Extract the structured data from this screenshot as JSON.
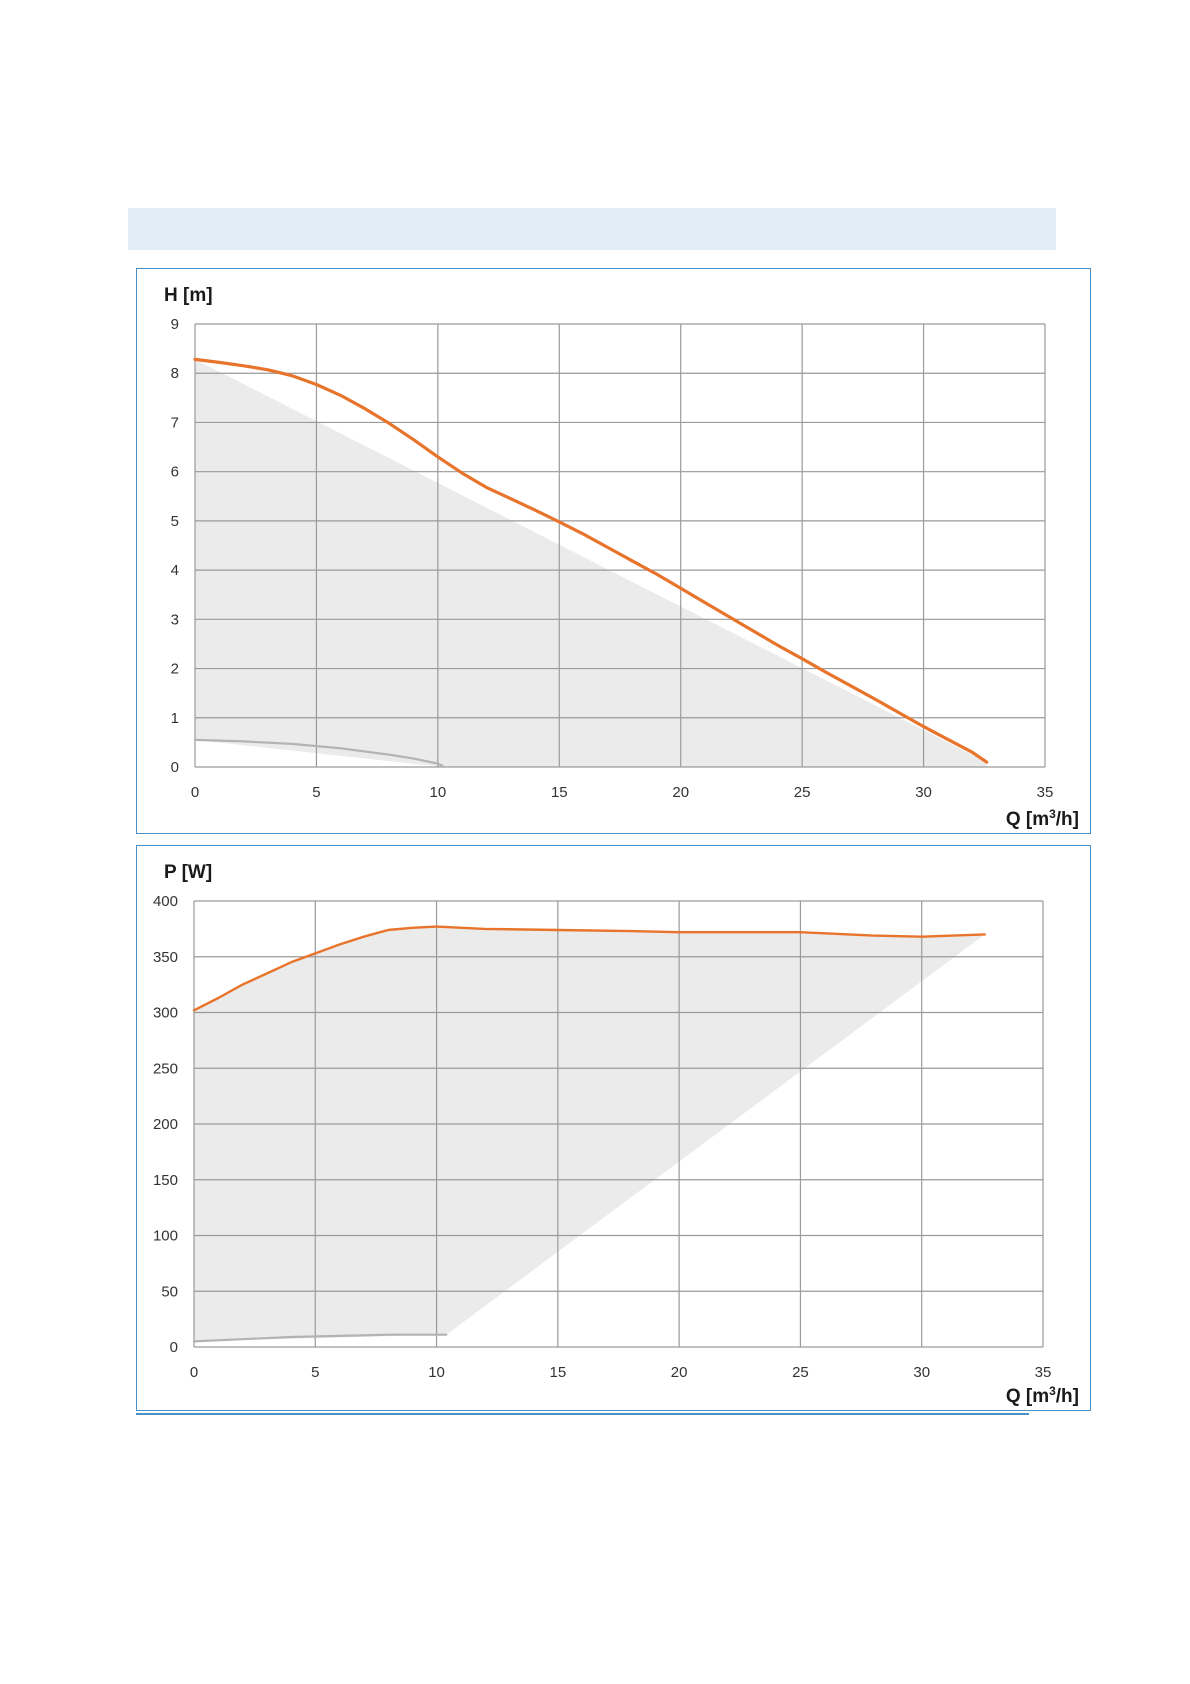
{
  "header_bar": {
    "text": ""
  },
  "colors": {
    "curve": "#e8742c",
    "min_curve": "#b3b3b3",
    "area": "#ebebeb",
    "grid": "#9a9a9a",
    "frame": "#4a90c8",
    "header_bar": "#e3edf7"
  },
  "chart_data": [
    {
      "id": "head",
      "type": "line",
      "ylabel": "H [m]",
      "xlabel_prefix": "Q [m",
      "xlabel_sup": "3",
      "xlabel_suffix": "/h]",
      "xlim": [
        0,
        35
      ],
      "ylim": [
        0,
        9
      ],
      "xticks": [
        0,
        5,
        10,
        15,
        20,
        25,
        30,
        35
      ],
      "yticks": [
        0,
        1,
        2,
        3,
        4,
        5,
        6,
        7,
        8,
        9
      ],
      "grid": true,
      "series": [
        {
          "role": "max",
          "points": [
            [
              0,
              8.28
            ],
            [
              1,
              8.22
            ],
            [
              2,
              8.15
            ],
            [
              3,
              8.07
            ],
            [
              4,
              7.95
            ],
            [
              5,
              7.77
            ],
            [
              6,
              7.55
            ],
            [
              7,
              7.28
            ],
            [
              8,
              6.98
            ],
            [
              9,
              6.65
            ],
            [
              10,
              6.3
            ],
            [
              11,
              5.97
            ],
            [
              12,
              5.68
            ],
            [
              13,
              5.45
            ],
            [
              14,
              5.22
            ],
            [
              15,
              4.98
            ],
            [
              16,
              4.73
            ],
            [
              17,
              4.46
            ],
            [
              18,
              4.19
            ],
            [
              19,
              3.92
            ],
            [
              20,
              3.63
            ],
            [
              21,
              3.34
            ],
            [
              22,
              3.05
            ],
            [
              23,
              2.76
            ],
            [
              24,
              2.47
            ],
            [
              25,
              2.2
            ],
            [
              26,
              1.92
            ],
            [
              27,
              1.65
            ],
            [
              28,
              1.38
            ],
            [
              29,
              1.1
            ],
            [
              30,
              0.82
            ],
            [
              31,
              0.56
            ],
            [
              32,
              0.3
            ],
            [
              32.6,
              0.1
            ]
          ]
        },
        {
          "role": "min",
          "points": [
            [
              0,
              0.55
            ],
            [
              2,
              0.52
            ],
            [
              4,
              0.47
            ],
            [
              6,
              0.38
            ],
            [
              8,
              0.25
            ],
            [
              9,
              0.17
            ],
            [
              10,
              0.07
            ],
            [
              10.2,
              0.02
            ]
          ]
        }
      ],
      "area_polygon": [
        [
          0,
          8.28
        ],
        [
          32.6,
          0.1
        ],
        [
          32.6,
          0.0
        ],
        [
          10.2,
          0.0
        ],
        [
          0,
          0.55
        ]
      ]
    },
    {
      "id": "power",
      "type": "line",
      "ylabel": "P [W]",
      "xlabel_prefix": "Q [m",
      "xlabel_sup": "3",
      "xlabel_suffix": "/h]",
      "xlim": [
        0,
        35
      ],
      "ylim": [
        0,
        400
      ],
      "xticks": [
        0,
        5,
        10,
        15,
        20,
        25,
        30,
        35
      ],
      "yticks": [
        0,
        50,
        100,
        150,
        200,
        250,
        300,
        350,
        400
      ],
      "grid": true,
      "series": [
        {
          "role": "max",
          "points": [
            [
              0,
              302
            ],
            [
              1,
              313
            ],
            [
              2,
              325
            ],
            [
              3,
              335
            ],
            [
              4,
              345
            ],
            [
              5,
              353
            ],
            [
              6,
              361
            ],
            [
              7,
              368
            ],
            [
              8,
              374
            ],
            [
              9,
              376
            ],
            [
              10,
              377
            ],
            [
              12,
              375
            ],
            [
              15,
              374
            ],
            [
              18,
              373
            ],
            [
              20,
              372
            ],
            [
              25,
              372
            ],
            [
              28,
              369
            ],
            [
              30,
              368
            ],
            [
              32.6,
              370
            ]
          ]
        },
        {
          "role": "min",
          "points": [
            [
              0,
              5
            ],
            [
              2,
              7
            ],
            [
              4,
              9
            ],
            [
              6,
              10
            ],
            [
              8,
              11
            ],
            [
              10,
              11
            ],
            [
              10.4,
              11
            ]
          ]
        }
      ],
      "area_polygon": [
        [
          0,
          302
        ],
        [
          1,
          313
        ],
        [
          2,
          325
        ],
        [
          3,
          335
        ],
        [
          4,
          345
        ],
        [
          5,
          353
        ],
        [
          6,
          361
        ],
        [
          7,
          368
        ],
        [
          8,
          374
        ],
        [
          9,
          376
        ],
        [
          10,
          377
        ],
        [
          12,
          375
        ],
        [
          15,
          374
        ],
        [
          18,
          373
        ],
        [
          20,
          372
        ],
        [
          25,
          372
        ],
        [
          28,
          369
        ],
        [
          30,
          368
        ],
        [
          32.6,
          370
        ],
        [
          10.4,
          11
        ],
        [
          0,
          5
        ]
      ]
    }
  ]
}
